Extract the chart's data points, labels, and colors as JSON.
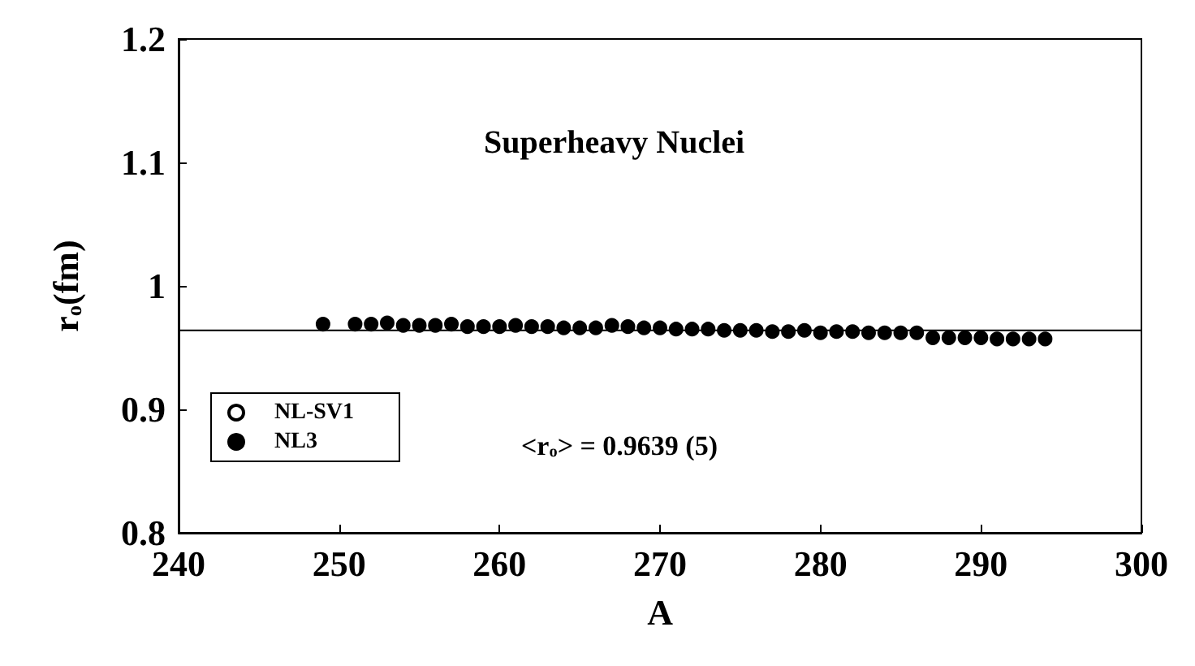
{
  "chart_data": {
    "type": "scatter",
    "title": "Superheavy Nuclei",
    "xlabel": "A",
    "ylabel": "r$_{o}$(fm)",
    "annotations": [
      "<r$_{o}$> = 0.9639 (5)"
    ],
    "x": [
      249,
      251,
      252,
      253,
      254,
      255,
      256,
      257,
      258,
      259,
      260,
      261,
      262,
      263,
      264,
      265,
      266,
      267,
      268,
      269,
      270,
      271,
      272,
      273,
      274,
      275,
      276,
      277,
      278,
      279,
      280,
      281,
      282,
      283,
      284,
      285,
      286,
      287,
      288,
      289,
      290,
      291,
      292,
      293,
      294
    ],
    "series": [
      {
        "name": "NL-SV1",
        "color": "#ffffff",
        "values": [
          null,
          null,
          null,
          null,
          null,
          null,
          null,
          null,
          null,
          null,
          null,
          null,
          null,
          null,
          null,
          null,
          null,
          null,
          null,
          null,
          null,
          null,
          null,
          null,
          null,
          null,
          null,
          null,
          null,
          null,
          null,
          null,
          null,
          null,
          null,
          null,
          null,
          null,
          null,
          null,
          null,
          null,
          null,
          null,
          null
        ]
      },
      {
        "name": "NL3",
        "color": "#000000",
        "values": [
          0.969,
          0.969,
          0.969,
          0.97,
          0.968,
          0.968,
          0.968,
          0.969,
          0.967,
          0.967,
          0.967,
          0.968,
          0.967,
          0.967,
          0.966,
          0.966,
          0.966,
          0.968,
          0.967,
          0.966,
          0.966,
          0.965,
          0.965,
          0.965,
          0.964,
          0.964,
          0.964,
          0.963,
          0.963,
          0.964,
          0.962,
          0.963,
          0.963,
          0.962,
          0.962,
          0.962,
          0.962,
          0.958,
          0.958,
          0.958,
          0.958,
          0.957,
          0.957,
          0.957,
          0.957
        ]
      }
    ],
    "xlim": [
      240,
      300
    ],
    "xticks": [
      240,
      250,
      260,
      270,
      280,
      290,
      300
    ],
    "ylim": [
      0.8,
      1.2
    ],
    "yticks": [
      0.8,
      0.9,
      1,
      1.1,
      1.2
    ],
    "ref_lines": [
      {
        "axis": "y",
        "value": 0.9639,
        "color": "#000000"
      }
    ],
    "grid": false,
    "legend": "bottom left",
    "marker": "circle"
  }
}
